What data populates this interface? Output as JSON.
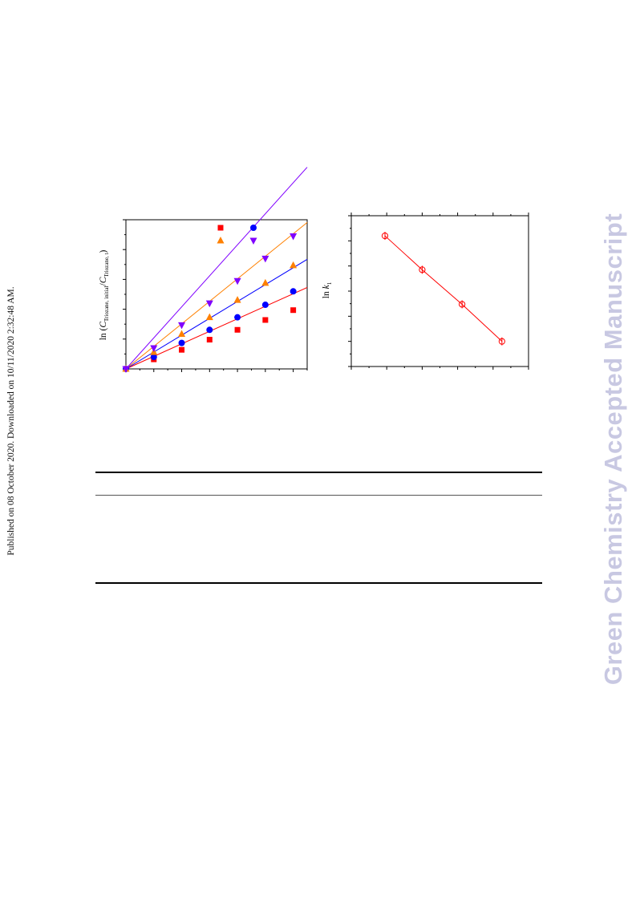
{
  "page": {
    "side_note": "Published on 08 October 2020. Downloaded on 10/11/2020 2:32:48 AM.",
    "watermark": "Green Chemistry Accepted Manuscript"
  },
  "chart_data": [
    {
      "type": "scatter",
      "ylabel": {
        "prefix": "ln (",
        "c1": "C",
        "sub1": "Triozane, initial",
        "slash": "/",
        "c2": "C",
        "sub2": "Triozane, t",
        "suffix": ")"
      },
      "xlim": [
        0,
        6.5
      ],
      "ylim": [
        0,
        5
      ],
      "series": [
        {
          "color": "#ff0000",
          "marker": "square",
          "slope": 0.42,
          "x": [
            0,
            1,
            2,
            3,
            4,
            5,
            6
          ],
          "y": [
            0,
            0.32,
            0.64,
            0.98,
            1.31,
            1.64,
            1.97
          ]
        },
        {
          "color": "#0000ff",
          "marker": "circle",
          "slope": 0.565,
          "x": [
            0,
            1,
            2,
            3,
            4,
            5,
            6
          ],
          "y": [
            0,
            0.4,
            0.87,
            1.31,
            1.73,
            2.15,
            2.6
          ]
        },
        {
          "color": "#ff8000",
          "marker": "triangle-up",
          "slope": 0.755,
          "x": [
            0,
            1,
            2,
            3,
            4,
            5,
            6
          ],
          "y": [
            0,
            0.56,
            1.17,
            1.73,
            2.31,
            2.88,
            3.47
          ]
        },
        {
          "color": "#8000ff",
          "marker": "triangle-down",
          "slope": 1.04,
          "x": [
            0,
            1,
            2,
            3,
            4,
            5,
            6
          ],
          "y": [
            0,
            0.7,
            1.47,
            2.2,
            2.95,
            3.7,
            4.45
          ]
        }
      ]
    },
    {
      "type": "line",
      "ylabel": {
        "prefix": "ln ",
        "k": "k",
        "sub": "1"
      },
      "xlim": [
        0,
        10
      ],
      "ylim": [
        0,
        12
      ],
      "color": "#ff0000",
      "marker": "circle-open",
      "x": [
        1.9,
        4.0,
        6.25,
        8.5
      ],
      "y": [
        10.4,
        7.7,
        4.95,
        2.0
      ]
    }
  ],
  "table": {
    "header": "",
    "rows": []
  }
}
